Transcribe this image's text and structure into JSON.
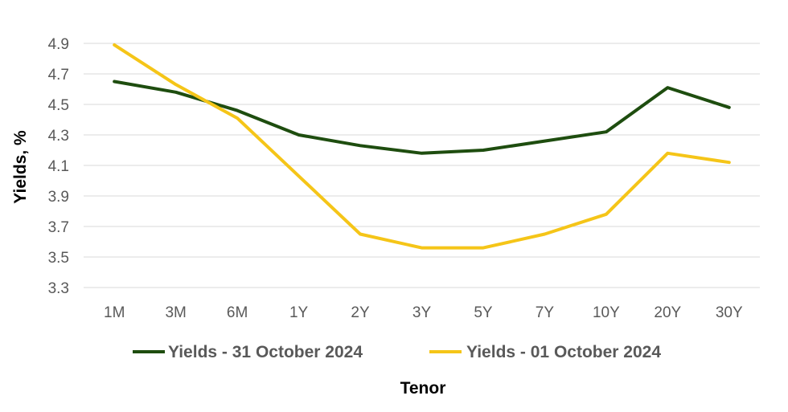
{
  "chart_data": {
    "type": "line",
    "title": "",
    "xlabel": "Tenor",
    "ylabel": "Yields, %",
    "ylim": [
      3.3,
      4.9
    ],
    "yticks": [
      "3.3",
      "3.5",
      "3.7",
      "3.9",
      "4.1",
      "4.3",
      "4.5",
      "4.7",
      "4.9"
    ],
    "grid": true,
    "legend_position": "bottom",
    "categories": [
      "1M",
      "3M",
      "6M",
      "1Y",
      "2Y",
      "3Y",
      "5Y",
      "7Y",
      "10Y",
      "20Y",
      "30Y"
    ],
    "series": [
      {
        "name": "Yields - 31 October 2024",
        "color": "#1e4d0f",
        "values": [
          4.65,
          4.58,
          4.46,
          4.3,
          4.23,
          4.18,
          4.2,
          4.26,
          4.32,
          4.61,
          4.48
        ]
      },
      {
        "name": "Yields - 01 October 2024",
        "color": "#f5c518",
        "values": [
          4.89,
          4.63,
          4.41,
          4.03,
          3.65,
          3.56,
          3.56,
          3.65,
          3.78,
          4.18,
          4.12
        ]
      }
    ]
  }
}
